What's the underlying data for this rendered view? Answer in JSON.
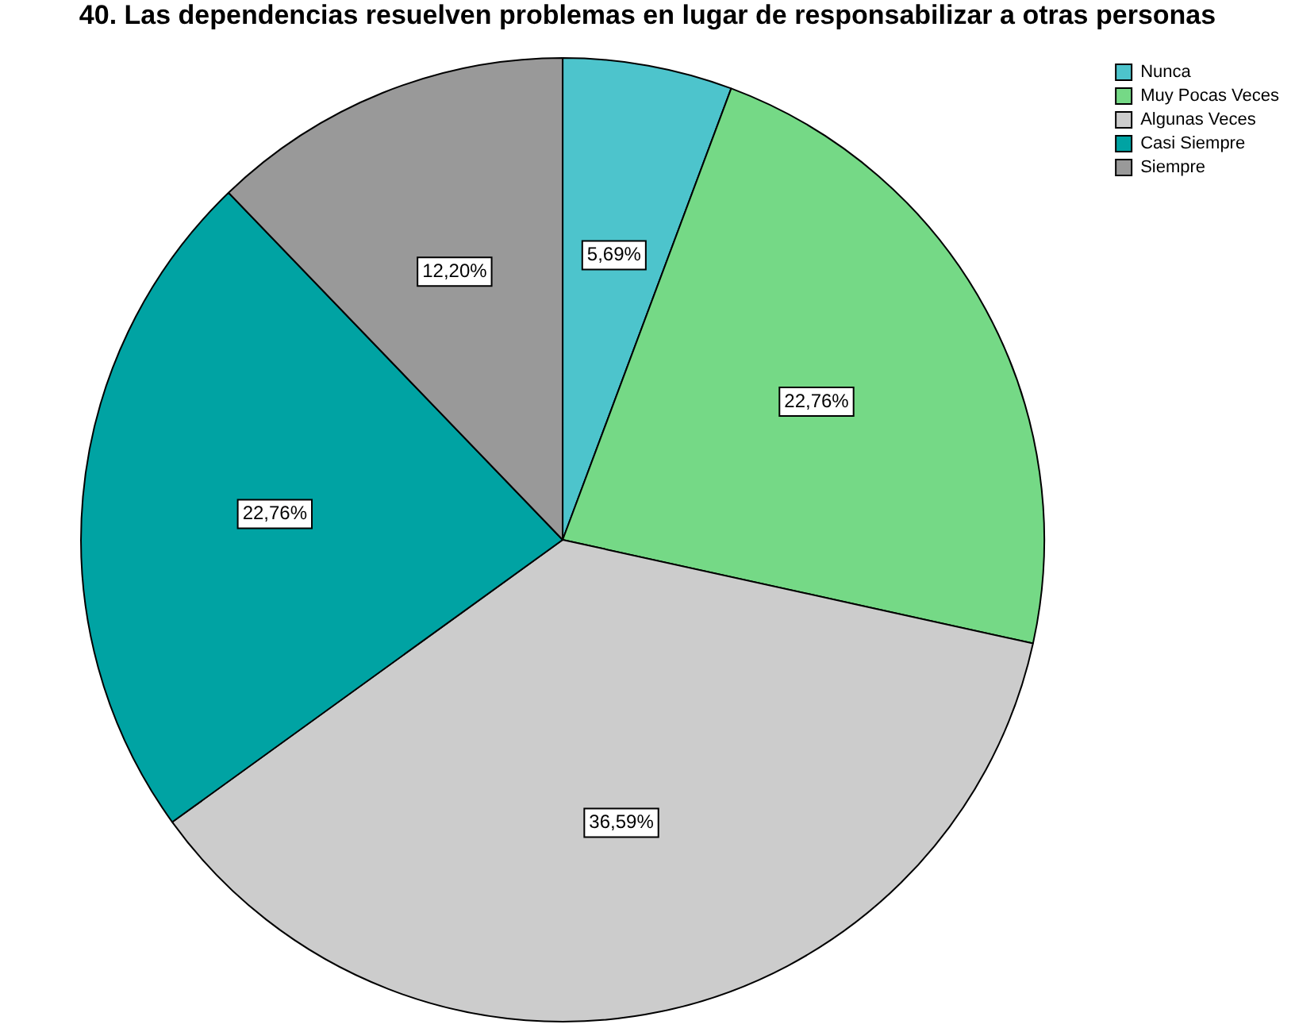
{
  "chart_data": {
    "type": "pie",
    "title": "40. Las dependencias resuelven problemas en lugar de responsabilizar a otras personas",
    "categories": [
      "Nunca",
      "Muy Pocas Veces",
      "Algunas Veces",
      "Casi Siempre",
      "Siempre"
    ],
    "values": [
      5.69,
      22.76,
      36.59,
      22.76,
      12.2
    ],
    "colors": [
      "#4dc4cc",
      "#75d986",
      "#cccccc",
      "#00a3a3",
      "#999999"
    ],
    "value_labels": [
      "5,69%",
      "22,76%",
      "36,59%",
      "22,76%",
      "12,20%"
    ],
    "legend": "top right"
  }
}
